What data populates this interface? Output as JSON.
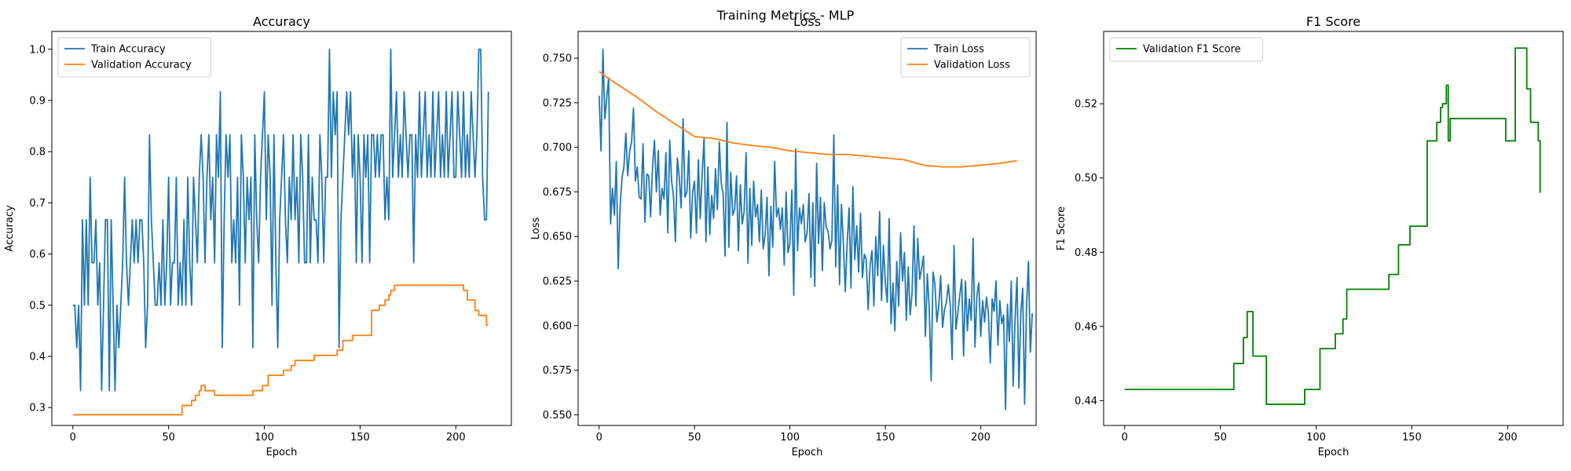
{
  "figure": {
    "suptitle": "Training Metrics - MLP"
  },
  "colors": {
    "blue": "#1f77b4",
    "orange": "#ff7f0e",
    "green": "#008000",
    "axis": "#000000"
  },
  "chart_data": [
    {
      "type": "line",
      "title": "Accuracy",
      "xlabel": "Epoch",
      "ylabel": "Accuracy",
      "xlim": [
        -11,
        229
      ],
      "ylim": [
        0.265,
        1.035
      ],
      "xticks": [
        0,
        50,
        100,
        150,
        200
      ],
      "yticks": [
        0.3,
        0.4,
        0.5,
        0.6,
        0.7,
        0.8,
        0.9,
        1.0
      ],
      "ytick_decimals": 1,
      "legend_position": "top-left",
      "series": [
        {
          "name": "Train Accuracy",
          "color": "#1f77b4",
          "x_start": 0,
          "values": [
            0.5,
            0.5,
            0.417,
            0.5,
            0.333,
            0.667,
            0.5,
            0.667,
            0.5,
            0.75,
            0.583,
            0.583,
            0.667,
            0.5,
            0.583,
            0.333,
            0.5,
            0.667,
            0.667,
            0.333,
            0.667,
            0.5,
            0.333,
            0.5,
            0.417,
            0.5,
            0.583,
            0.75,
            0.583,
            0.5,
            0.583,
            0.667,
            0.583,
            0.667,
            0.583,
            0.667,
            0.667,
            0.583,
            0.417,
            0.5,
            0.833,
            0.667,
            0.583,
            0.5,
            0.5,
            0.583,
            0.5,
            0.667,
            0.5,
            0.583,
            0.75,
            0.5,
            0.583,
            0.583,
            0.75,
            0.5,
            0.583,
            0.5,
            0.667,
            0.5,
            0.75,
            0.583,
            0.5,
            0.75,
            0.667,
            0.583,
            0.75,
            0.833,
            0.75,
            0.583,
            0.75,
            0.833,
            0.667,
            0.75,
            0.583,
            0.833,
            0.75,
            0.917,
            0.417,
            0.667,
            0.833,
            0.75,
            0.833,
            0.583,
            0.667,
            0.583,
            0.75,
            0.5,
            0.833,
            0.75,
            0.583,
            0.75,
            0.667,
            0.75,
            0.417,
            0.833,
            0.667,
            0.583,
            0.75,
            0.833,
            0.917,
            0.667,
            0.833,
            0.75,
            0.5,
            0.833,
            0.583,
            0.417,
            0.667,
            0.75,
            0.833,
            0.667,
            0.583,
            0.75,
            0.667,
            0.833,
            0.667,
            0.75,
            0.583,
            0.833,
            0.75,
            0.583,
            0.583,
            0.833,
            0.583,
            0.75,
            0.667,
            0.667,
            0.583,
            0.833,
            0.75,
            0.583,
            0.75,
            0.75,
            1.0,
            0.75,
            0.917,
            0.833,
            0.917,
            0.417,
            0.667,
            0.75,
            0.833,
            0.917,
            0.833,
            0.917,
            0.75,
            0.833,
            0.583,
            0.833,
            0.75,
            0.583,
            0.833,
            0.75,
            0.833,
            0.583,
            0.833,
            0.833,
            0.75,
            0.833,
            0.75,
            0.833,
            0.833,
            0.667,
            0.75,
            0.667,
            1.0,
            0.75,
            0.833,
            0.917,
            0.75,
            0.833,
            0.75,
            0.917,
            0.833,
            0.75,
            0.833,
            0.833,
            0.583,
            0.833,
            0.75,
            0.917,
            0.75,
            0.833,
            0.917,
            0.75,
            0.833,
            0.75,
            0.917,
            0.75,
            0.833,
            0.917,
            0.75,
            0.833,
            0.75,
            0.917,
            0.75,
            0.833,
            0.917,
            0.75,
            0.75,
            0.917,
            0.833,
            0.75,
            0.917,
            0.75,
            0.833,
            0.75,
            0.917,
            0.833,
            0.75,
            0.833,
            1.0,
            1.0,
            0.75,
            0.667,
            0.667,
            0.917
          ]
        },
        {
          "name": "Validation Accuracy",
          "color": "#ff7f0e",
          "step_x": [
            0,
            55,
            57,
            61,
            62,
            64,
            66,
            67,
            69,
            72,
            74,
            83,
            84,
            89,
            90,
            93,
            94,
            99,
            102,
            110,
            114,
            116,
            126,
            130,
            138,
            141,
            143,
            146,
            149,
            155,
            156,
            158,
            160,
            163,
            165,
            166,
            168,
            169,
            170,
            198,
            199,
            204,
            206,
            210,
            212,
            216,
            217
          ],
          "step_y": [
            0.286,
            0.286,
            0.304,
            0.304,
            0.314,
            0.324,
            0.333,
            0.343,
            0.333,
            0.333,
            0.324,
            0.324,
            0.324,
            0.324,
            0.324,
            0.324,
            0.333,
            0.343,
            0.363,
            0.373,
            0.382,
            0.392,
            0.402,
            0.402,
            0.412,
            0.431,
            0.431,
            0.441,
            0.441,
            0.441,
            0.49,
            0.49,
            0.5,
            0.51,
            0.52,
            0.529,
            0.539,
            0.539,
            0.539,
            0.539,
            0.539,
            0.529,
            0.51,
            0.49,
            0.48,
            0.461,
            0.461
          ]
        }
      ]
    },
    {
      "type": "line",
      "title": "Loss",
      "xlabel": "Epoch",
      "ylabel": "Loss",
      "xlim": [
        -11,
        229
      ],
      "ylim": [
        0.544,
        0.765
      ],
      "xticks": [
        0,
        50,
        100,
        150,
        200
      ],
      "yticks": [
        0.55,
        0.575,
        0.6,
        0.625,
        0.65,
        0.675,
        0.7,
        0.725,
        0.75
      ],
      "ytick_decimals": 3,
      "legend_position": "top-right",
      "series": [
        {
          "name": "Train Loss",
          "color": "#1f77b4",
          "x_start": 0,
          "values": [
            0.729,
            0.698,
            0.755,
            0.716,
            0.728,
            0.739,
            0.657,
            0.677,
            0.662,
            0.692,
            0.632,
            0.667,
            0.683,
            0.689,
            0.708,
            0.684,
            0.698,
            0.703,
            0.722,
            0.681,
            0.689,
            0.672,
            0.671,
            0.702,
            0.658,
            0.685,
            0.684,
            0.661,
            0.689,
            0.704,
            0.675,
            0.698,
            0.662,
            0.677,
            0.671,
            0.697,
            0.652,
            0.704,
            0.681,
            0.672,
            0.647,
            0.694,
            0.683,
            0.666,
            0.716,
            0.672,
            0.675,
            0.698,
            0.649,
            0.675,
            0.681,
            0.652,
            0.693,
            0.66,
            0.685,
            0.705,
            0.647,
            0.689,
            0.651,
            0.673,
            0.66,
            0.688,
            0.665,
            0.703,
            0.68,
            0.674,
            0.639,
            0.714,
            0.644,
            0.686,
            0.662,
            0.665,
            0.684,
            0.642,
            0.679,
            0.657,
            0.664,
            0.697,
            0.635,
            0.677,
            0.645,
            0.681,
            0.661,
            0.668,
            0.647,
            0.676,
            0.643,
            0.651,
            0.672,
            0.628,
            0.667,
            0.644,
            0.692,
            0.661,
            0.666,
            0.654,
            0.666,
            0.634,
            0.675,
            0.641,
            0.646,
            0.676,
            0.617,
            0.699,
            0.642,
            0.666,
            0.657,
            0.668,
            0.647,
            0.652,
            0.674,
            0.627,
            0.669,
            0.622,
            0.691,
            0.646,
            0.672,
            0.631,
            0.669,
            0.655,
            0.653,
            0.643,
            0.648,
            0.707,
            0.633,
            0.679,
            0.623,
            0.668,
            0.646,
            0.619,
            0.646,
            0.666,
            0.621,
            0.678,
            0.637,
            0.656,
            0.63,
            0.663,
            0.627,
            0.64,
            0.637,
            0.609,
            0.634,
            0.642,
            0.611,
            0.65,
            0.628,
            0.664,
            0.614,
            0.645,
            0.624,
            0.613,
            0.66,
            0.601,
            0.624,
            0.597,
            0.636,
            0.611,
            0.652,
            0.625,
            0.641,
            0.603,
            0.633,
            0.606,
            0.618,
            0.656,
            0.611,
            0.649,
            0.626,
            0.632,
            0.639,
            0.594,
            0.629,
            0.61,
            0.569,
            0.63,
            0.623,
            0.602,
            0.611,
            0.628,
            0.599,
            0.609,
            0.613,
            0.623,
            0.612,
            0.581,
            0.645,
            0.598,
            0.607,
            0.617,
            0.626,
            0.583,
            0.625,
            0.597,
            0.615,
            0.603,
            0.649,
            0.588,
            0.617,
            0.624,
            0.594,
            0.614,
            0.602,
            0.616,
            0.607,
            0.579,
            0.615,
            0.608,
            0.625,
            0.589,
            0.614,
            0.601,
            0.606,
            0.553,
            0.612,
            0.591,
            0.625,
            0.566,
            0.604,
            0.627,
            0.565,
            0.607,
            0.621,
            0.556,
            0.611,
            0.636,
            0.585,
            0.607
          ]
        },
        {
          "name": "Validation Loss",
          "color": "#ff7f0e",
          "x": [
            0,
            5,
            10,
            20,
            30,
            40,
            50,
            60,
            70,
            80,
            90,
            100,
            110,
            120,
            130,
            140,
            150,
            160,
            170,
            180,
            190,
            200,
            210,
            219
          ],
          "values": [
            0.7425,
            0.7385,
            0.735,
            0.728,
            0.72,
            0.713,
            0.706,
            0.705,
            0.7025,
            0.701,
            0.7,
            0.698,
            0.697,
            0.696,
            0.696,
            0.695,
            0.694,
            0.693,
            0.69,
            0.689,
            0.689,
            0.69,
            0.691,
            0.6925
          ]
        }
      ]
    },
    {
      "type": "line",
      "title": "F1 Score",
      "xlabel": "Epoch",
      "ylabel": "F1 Score",
      "xlim": [
        -11,
        229
      ],
      "ylim": [
        0.4333,
        0.5395
      ],
      "xticks": [
        0,
        50,
        100,
        150,
        200
      ],
      "yticks": [
        0.44,
        0.46,
        0.48,
        0.5,
        0.52
      ],
      "ytick_decimals": 2,
      "legend_position": "top-left",
      "series": [
        {
          "name": "Validation F1 Score",
          "color": "#008000",
          "step_x": [
            0,
            55,
            57,
            61,
            62,
            64,
            66,
            67,
            69,
            72,
            74,
            83,
            84,
            89,
            90,
            93,
            94,
            99,
            102,
            110,
            114,
            116,
            126,
            130,
            138,
            141,
            143,
            146,
            149,
            155,
            156,
            158,
            160,
            163,
            165,
            166,
            168,
            169,
            170,
            198,
            199,
            204,
            206,
            210,
            212,
            216,
            217
          ],
          "step_y": [
            0.443,
            0.443,
            0.45,
            0.45,
            0.457,
            0.464,
            0.464,
            0.452,
            0.452,
            0.452,
            0.439,
            0.439,
            0.439,
            0.439,
            0.439,
            0.439,
            0.443,
            0.443,
            0.454,
            0.458,
            0.462,
            0.47,
            0.47,
            0.47,
            0.474,
            0.474,
            0.482,
            0.482,
            0.487,
            0.487,
            0.487,
            0.51,
            0.51,
            0.515,
            0.519,
            0.52,
            0.525,
            0.51,
            0.516,
            0.516,
            0.51,
            0.535,
            0.535,
            0.524,
            0.515,
            0.51,
            0.496
          ]
        }
      ]
    }
  ]
}
